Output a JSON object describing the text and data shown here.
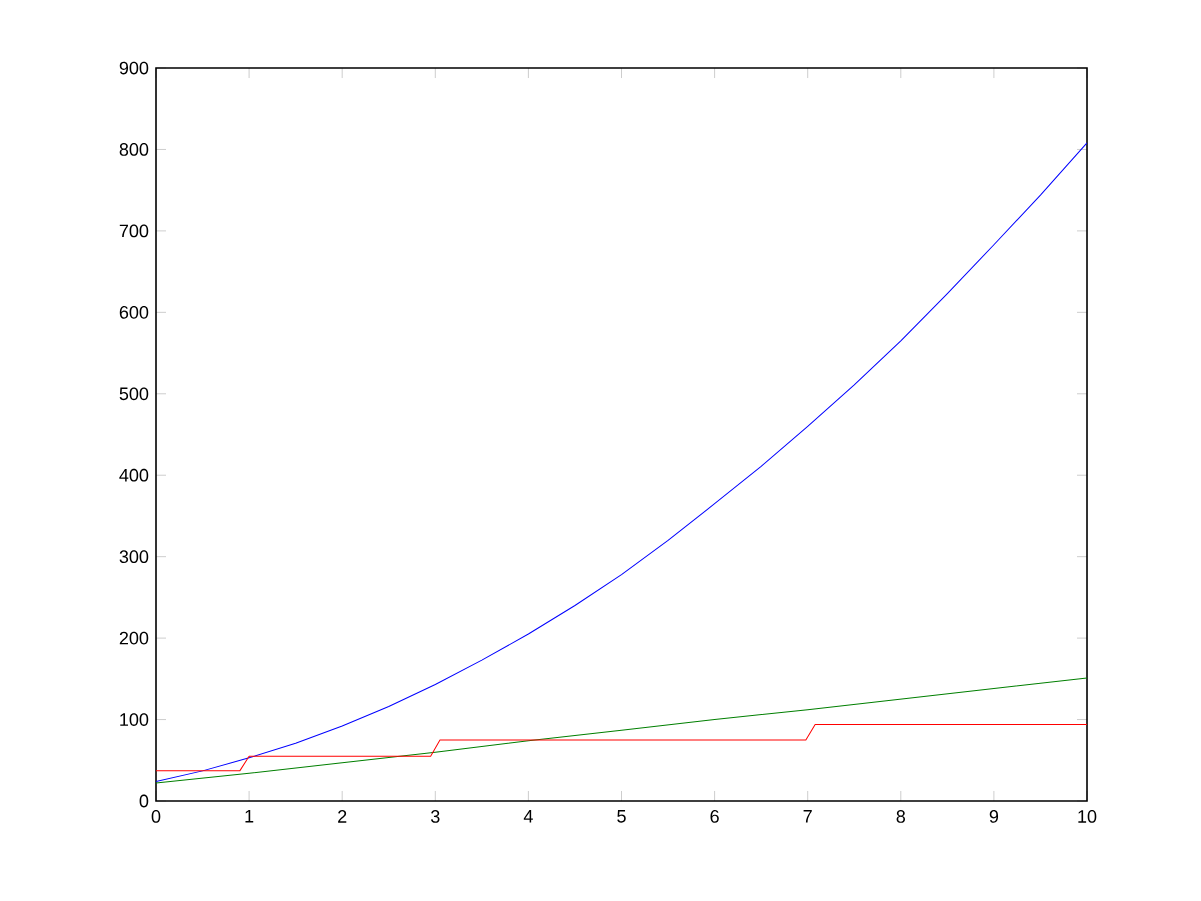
{
  "chart_data": {
    "type": "line",
    "xlim": [
      0,
      10
    ],
    "ylim": [
      0,
      900
    ],
    "xticks": [
      0,
      1,
      2,
      3,
      4,
      5,
      6,
      7,
      8,
      9,
      10
    ],
    "yticks": [
      0,
      100,
      200,
      300,
      400,
      500,
      600,
      700,
      800,
      900
    ],
    "grid": false,
    "marker": "none",
    "line_style": "solid",
    "series": [
      {
        "color": "#0000ff",
        "x": [
          0,
          0.5,
          1,
          1.5,
          2,
          2.5,
          3,
          3.5,
          4,
          4.5,
          5,
          5.5,
          6,
          6.5,
          7,
          7.5,
          8,
          8.5,
          9,
          9.5,
          10
        ],
        "values": [
          24,
          37,
          53,
          71,
          92,
          116,
          143,
          173,
          205,
          240,
          278,
          320,
          365,
          411,
          460,
          511,
          565,
          623,
          683,
          744,
          808
        ]
      },
      {
        "color": "#007f00",
        "x": [
          0,
          1,
          2,
          3,
          4,
          5,
          6,
          7,
          8,
          9,
          10
        ],
        "values": [
          22,
          34,
          47,
          60,
          74,
          87,
          100,
          112,
          125,
          138,
          151
        ]
      },
      {
        "color": "#ff0000",
        "x": [
          0,
          0.9,
          1.0,
          2.95,
          3.05,
          6.98,
          7.08,
          10
        ],
        "values": [
          37,
          37,
          55,
          55,
          75,
          75,
          94,
          94
        ]
      }
    ]
  }
}
